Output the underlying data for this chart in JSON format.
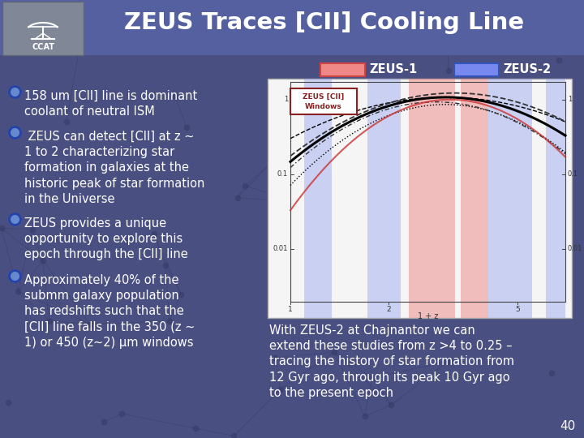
{
  "title": "ZEUS Traces [CII] Cooling Line",
  "title_fontsize": 21,
  "title_color": "#FFFFFF",
  "bg_color": "#4a4f82",
  "header_color": "#5560A0",
  "slide_number": "40",
  "legend1_label": "ZEUS-1",
  "legend1_color": "#F08888",
  "legend1_border": "#CC4444",
  "legend2_label": "ZEUS-2",
  "legend2_color": "#7788EE",
  "legend2_border": "#3355BB",
  "bullet_texts": [
    "158 um [CII] line is dominant\ncoolant of neutral ISM",
    " ZEUS can detect [CII] at z ~\n1 to 2 characterizing star\nformation in galaxies at the\nhistoric peak of star formation\nin the Universe",
    "ZEUS provides a unique\nopportunity to explore this\nepoch through the [CII] line",
    "Approximately 40% of the\nsubmm galaxy population\nhas redshifts such that the\n[CII] line falls in the 350 (z ~\n1) or 450 (z~2) μm windows"
  ],
  "bottom_text": "With ZEUS-2 at Chajnantor we can\nextend these studies from z >4 to 0.25 –\ntracing the history of star formation from\n12 Gyr ago, through its peak 10 Gyr ago\nto the present epoch",
  "text_color": "#FFFFFF",
  "text_fontsize": 10.5,
  "ccat_bg": "#808898",
  "node_color": "#383d6a",
  "graph_bg": "#F5F5F5",
  "band_blue": "#8899EE",
  "band_red": "#EE7777",
  "windows_border": "#882222",
  "windows_text": "#882222"
}
